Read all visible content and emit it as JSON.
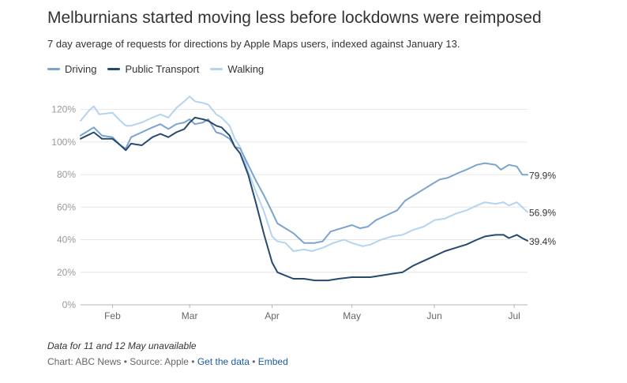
{
  "header": {
    "title": "Melburnians started moving less before lockdowns were reimposed",
    "subtitle": "7 day average of requests for directions by Apple Maps users, indexed against January 13."
  },
  "footer": {
    "note": "Data for 11 and 12 May unavailable",
    "credit_prefix": "Chart: ABC News • Source: Apple • ",
    "get_data_label": "Get the data",
    "separator": " • ",
    "embed_label": "Embed"
  },
  "colors": {
    "driving": "#7ba3d0",
    "public_transport": "#264a6e",
    "walking": "#b3d4f0",
    "axis_text": "#999999",
    "grid": "#e6e6e6",
    "link": "#1a5c9e"
  },
  "chart_data": {
    "type": "line",
    "title": "Melburnians started moving less before lockdowns were reimposed",
    "subtitle": "7 day average of requests for directions by Apple Maps users, indexed against January 13.",
    "xlabel": "",
    "ylabel": "",
    "x_ticks": [
      "Feb",
      "Mar",
      "Apr",
      "May",
      "Jun",
      "Jul"
    ],
    "x_tick_dates": [
      "2020-02-01",
      "2020-03-01",
      "2020-04-01",
      "2020-05-01",
      "2020-06-01",
      "2020-07-01"
    ],
    "x_range": [
      "2020-01-20",
      "2020-07-06"
    ],
    "ylim": [
      0,
      130
    ],
    "y_ticks": [
      0,
      20,
      40,
      60,
      80,
      100,
      120
    ],
    "y_tick_labels": [
      "0%",
      "20%",
      "40%",
      "60%",
      "80%",
      "100%",
      "120%"
    ],
    "grid": "horizontal",
    "legend_position": "top-left",
    "series": [
      {
        "name": "Driving",
        "color_key": "driving",
        "end_label": "79.9%",
        "points": [
          [
            "2020-01-20",
            104
          ],
          [
            "2020-01-25",
            109
          ],
          [
            "2020-01-28",
            104
          ],
          [
            "2020-02-01",
            103
          ],
          [
            "2020-02-04",
            98
          ],
          [
            "2020-02-06",
            96
          ],
          [
            "2020-02-08",
            103
          ],
          [
            "2020-02-12",
            106
          ],
          [
            "2020-02-16",
            109
          ],
          [
            "2020-02-19",
            111
          ],
          [
            "2020-02-22",
            108
          ],
          [
            "2020-02-25",
            111
          ],
          [
            "2020-02-28",
            112
          ],
          [
            "2020-03-01",
            114
          ],
          [
            "2020-03-03",
            111
          ],
          [
            "2020-03-06",
            112
          ],
          [
            "2020-03-08",
            114
          ],
          [
            "2020-03-11",
            106
          ],
          [
            "2020-03-13",
            105
          ],
          [
            "2020-03-16",
            102
          ],
          [
            "2020-03-18",
            97
          ],
          [
            "2020-03-20",
            96
          ],
          [
            "2020-03-23",
            86
          ],
          [
            "2020-03-26",
            76
          ],
          [
            "2020-03-29",
            67
          ],
          [
            "2020-04-01",
            57
          ],
          [
            "2020-04-03",
            50
          ],
          [
            "2020-04-06",
            47
          ],
          [
            "2020-04-09",
            44
          ],
          [
            "2020-04-11",
            41
          ],
          [
            "2020-04-13",
            38
          ],
          [
            "2020-04-17",
            38
          ],
          [
            "2020-04-20",
            39
          ],
          [
            "2020-04-23",
            45
          ],
          [
            "2020-04-27",
            47
          ],
          [
            "2020-05-01",
            49
          ],
          [
            "2020-05-04",
            47
          ],
          [
            "2020-05-07",
            48
          ],
          [
            "2020-05-10",
            52
          ],
          [
            "2020-05-14",
            55
          ],
          [
            "2020-05-18",
            58
          ],
          [
            "2020-05-21",
            64
          ],
          [
            "2020-05-24",
            67
          ],
          [
            "2020-05-27",
            70
          ],
          [
            "2020-05-31",
            74
          ],
          [
            "2020-06-03",
            77
          ],
          [
            "2020-06-06",
            78
          ],
          [
            "2020-06-10",
            81
          ],
          [
            "2020-06-13",
            83
          ],
          [
            "2020-06-17",
            86
          ],
          [
            "2020-06-20",
            87
          ],
          [
            "2020-06-24",
            86
          ],
          [
            "2020-06-26",
            83
          ],
          [
            "2020-06-29",
            86
          ],
          [
            "2020-07-02",
            85
          ],
          [
            "2020-07-04",
            80
          ],
          [
            "2020-07-06",
            79.9
          ]
        ]
      },
      {
        "name": "Public Transport",
        "color_key": "public_transport",
        "end_label": "39.4%",
        "points": [
          [
            "2020-01-20",
            102
          ],
          [
            "2020-01-25",
            106
          ],
          [
            "2020-01-28",
            102
          ],
          [
            "2020-02-01",
            102
          ],
          [
            "2020-02-04",
            98
          ],
          [
            "2020-02-06",
            95
          ],
          [
            "2020-02-08",
            99
          ],
          [
            "2020-02-12",
            98
          ],
          [
            "2020-02-16",
            103
          ],
          [
            "2020-02-19",
            105
          ],
          [
            "2020-02-22",
            103
          ],
          [
            "2020-02-25",
            106
          ],
          [
            "2020-02-28",
            108
          ],
          [
            "2020-03-01",
            112
          ],
          [
            "2020-03-03",
            115
          ],
          [
            "2020-03-06",
            114
          ],
          [
            "2020-03-08",
            113
          ],
          [
            "2020-03-11",
            110
          ],
          [
            "2020-03-13",
            109
          ],
          [
            "2020-03-16",
            104
          ],
          [
            "2020-03-18",
            97
          ],
          [
            "2020-03-20",
            93
          ],
          [
            "2020-03-23",
            80
          ],
          [
            "2020-03-26",
            62
          ],
          [
            "2020-03-29",
            43
          ],
          [
            "2020-04-01",
            26
          ],
          [
            "2020-04-03",
            20
          ],
          [
            "2020-04-06",
            18
          ],
          [
            "2020-04-09",
            16
          ],
          [
            "2020-04-13",
            16
          ],
          [
            "2020-04-17",
            15
          ],
          [
            "2020-04-22",
            15
          ],
          [
            "2020-04-26",
            16
          ],
          [
            "2020-05-01",
            17
          ],
          [
            "2020-05-05",
            17
          ],
          [
            "2020-05-08",
            17
          ],
          [
            "2020-05-12",
            18
          ],
          [
            "2020-05-16",
            19
          ],
          [
            "2020-05-20",
            20
          ],
          [
            "2020-05-24",
            24
          ],
          [
            "2020-05-28",
            27
          ],
          [
            "2020-06-01",
            30
          ],
          [
            "2020-06-05",
            33
          ],
          [
            "2020-06-09",
            35
          ],
          [
            "2020-06-13",
            37
          ],
          [
            "2020-06-17",
            40
          ],
          [
            "2020-06-20",
            42
          ],
          [
            "2020-06-24",
            43
          ],
          [
            "2020-06-27",
            43
          ],
          [
            "2020-06-29",
            41
          ],
          [
            "2020-07-02",
            43
          ],
          [
            "2020-07-04",
            41
          ],
          [
            "2020-07-06",
            39.4
          ]
        ]
      },
      {
        "name": "Walking",
        "color_key": "walking",
        "end_label": "56.9%",
        "points": [
          [
            "2020-01-20",
            113
          ],
          [
            "2020-01-23",
            119
          ],
          [
            "2020-01-25",
            122
          ],
          [
            "2020-01-27",
            117
          ],
          [
            "2020-02-01",
            118
          ],
          [
            "2020-02-04",
            113
          ],
          [
            "2020-02-06",
            110
          ],
          [
            "2020-02-08",
            110
          ],
          [
            "2020-02-12",
            112
          ],
          [
            "2020-02-16",
            115
          ],
          [
            "2020-02-19",
            117
          ],
          [
            "2020-02-22",
            115
          ],
          [
            "2020-02-25",
            121
          ],
          [
            "2020-02-28",
            125
          ],
          [
            "2020-03-01",
            128
          ],
          [
            "2020-03-03",
            125
          ],
          [
            "2020-03-06",
            124
          ],
          [
            "2020-03-08",
            123
          ],
          [
            "2020-03-11",
            117
          ],
          [
            "2020-03-13",
            115
          ],
          [
            "2020-03-16",
            110
          ],
          [
            "2020-03-18",
            102
          ],
          [
            "2020-03-20",
            97
          ],
          [
            "2020-03-23",
            82
          ],
          [
            "2020-03-26",
            69
          ],
          [
            "2020-03-29",
            57
          ],
          [
            "2020-04-01",
            42
          ],
          [
            "2020-04-03",
            39
          ],
          [
            "2020-04-06",
            38
          ],
          [
            "2020-04-09",
            33
          ],
          [
            "2020-04-13",
            34
          ],
          [
            "2020-04-16",
            33
          ],
          [
            "2020-04-20",
            35
          ],
          [
            "2020-04-24",
            38
          ],
          [
            "2020-04-28",
            40
          ],
          [
            "2020-05-01",
            38
          ],
          [
            "2020-05-05",
            36
          ],
          [
            "2020-05-08",
            37
          ],
          [
            "2020-05-12",
            40
          ],
          [
            "2020-05-16",
            42
          ],
          [
            "2020-05-20",
            43
          ],
          [
            "2020-05-24",
            46
          ],
          [
            "2020-05-28",
            48
          ],
          [
            "2020-06-01",
            52
          ],
          [
            "2020-06-05",
            53
          ],
          [
            "2020-06-09",
            56
          ],
          [
            "2020-06-13",
            58
          ],
          [
            "2020-06-17",
            61
          ],
          [
            "2020-06-20",
            63
          ],
          [
            "2020-06-24",
            62
          ],
          [
            "2020-06-27",
            63
          ],
          [
            "2020-06-29",
            61
          ],
          [
            "2020-07-02",
            63
          ],
          [
            "2020-07-04",
            60
          ],
          [
            "2020-07-06",
            56.9
          ]
        ]
      }
    ]
  }
}
